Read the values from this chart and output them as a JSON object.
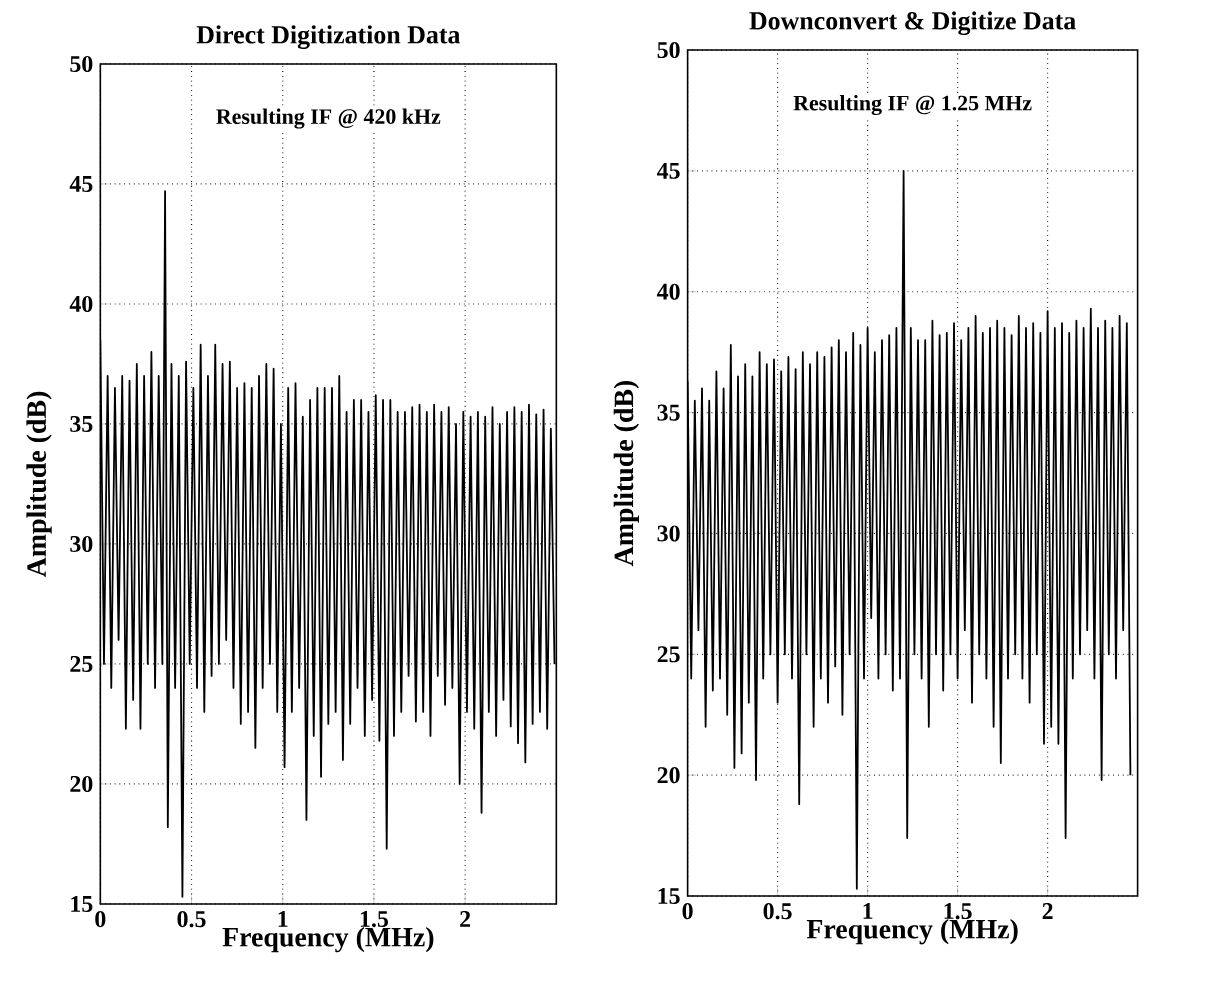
{
  "chart_data": [
    {
      "type": "line",
      "title": "Direct Digitization Data",
      "xlabel": "Frequency (MHz)",
      "ylabel": "Amplitude (dB)",
      "annotations": [
        "Resulting IF @ 420 kHz"
      ],
      "color": "#000000",
      "grid": true,
      "xlim": [
        0,
        2.5
      ],
      "ylim": [
        15,
        50
      ],
      "xticks": [
        0,
        0.5,
        1,
        1.5,
        2
      ],
      "yticks": [
        15,
        20,
        25,
        30,
        35,
        40,
        45,
        50
      ],
      "x": [
        0,
        0.02,
        0.04,
        0.06,
        0.08,
        0.1,
        0.12,
        0.14,
        0.16,
        0.18,
        0.2,
        0.22,
        0.24,
        0.26,
        0.28,
        0.3,
        0.32,
        0.34,
        0.355,
        0.37,
        0.39,
        0.41,
        0.43,
        0.45,
        0.47,
        0.49,
        0.51,
        0.53,
        0.55,
        0.57,
        0.59,
        0.61,
        0.63,
        0.65,
        0.67,
        0.69,
        0.71,
        0.73,
        0.75,
        0.77,
        0.79,
        0.81,
        0.83,
        0.85,
        0.87,
        0.89,
        0.91,
        0.93,
        0.95,
        0.97,
        0.99,
        1.01,
        1.03,
        1.05,
        1.07,
        1.09,
        1.11,
        1.13,
        1.15,
        1.17,
        1.19,
        1.21,
        1.23,
        1.25,
        1.27,
        1.29,
        1.31,
        1.33,
        1.35,
        1.37,
        1.39,
        1.41,
        1.43,
        1.45,
        1.47,
        1.49,
        1.51,
        1.53,
        1.55,
        1.57,
        1.59,
        1.61,
        1.63,
        1.65,
        1.67,
        1.69,
        1.71,
        1.73,
        1.75,
        1.77,
        1.79,
        1.81,
        1.83,
        1.85,
        1.87,
        1.89,
        1.91,
        1.93,
        1.95,
        1.97,
        1.99,
        2.01,
        2.03,
        2.05,
        2.07,
        2.09,
        2.11,
        2.13,
        2.15,
        2.17,
        2.19,
        2.21,
        2.23,
        2.25,
        2.27,
        2.29,
        2.31,
        2.33,
        2.35,
        2.37,
        2.39,
        2.41,
        2.43,
        2.45,
        2.47,
        2.49
      ],
      "values": [
        38.5,
        25,
        37,
        24,
        36.5,
        26,
        37,
        22.3,
        36.8,
        23.5,
        37.5,
        22.3,
        37,
        25,
        38,
        24,
        37,
        25,
        44.7,
        18.2,
        37.5,
        24,
        37,
        15.3,
        37.6,
        25,
        36.5,
        24,
        38.3,
        23,
        37,
        24.5,
        38.3,
        25,
        37.5,
        26,
        37.6,
        24,
        36.5,
        22.5,
        36.7,
        23,
        36.5,
        21.5,
        37,
        24,
        37.5,
        25,
        37.3,
        23,
        35,
        20.7,
        36.5,
        23,
        36.7,
        24,
        35.3,
        18.5,
        36,
        22,
        36.5,
        20.3,
        36.5,
        22.5,
        36.5,
        23,
        37,
        21,
        35.5,
        22.5,
        36,
        24,
        36,
        22,
        35.5,
        23.5,
        36.2,
        21.8,
        36,
        17.3,
        36,
        22,
        35.5,
        23,
        35.5,
        24.5,
        35.7,
        22.6,
        35.8,
        23,
        35.5,
        22,
        35.8,
        24.5,
        35.5,
        23.3,
        35.7,
        24,
        35,
        20,
        35.5,
        23,
        35.3,
        22.3,
        35.5,
        18.8,
        35.3,
        23,
        35.7,
        22,
        35,
        23.5,
        35.5,
        22.4,
        35.7,
        21.7,
        35.5,
        20.9,
        35.8,
        22.5,
        35.4,
        23,
        35.6,
        22.3,
        34.8,
        25
      ]
    },
    {
      "type": "line",
      "title": "Downconvert & Digitize Data",
      "xlabel": "Frequency (MHz)",
      "ylabel": "Amplitude (dB)",
      "annotations": [
        "Resulting IF @ 1.25 MHz"
      ],
      "color": "#000000",
      "grid": true,
      "xlim": [
        0,
        2.5
      ],
      "ylim": [
        15,
        50
      ],
      "xticks": [
        0,
        0.5,
        1,
        1.5,
        2
      ],
      "yticks": [
        15,
        20,
        25,
        30,
        35,
        40,
        45,
        50
      ],
      "x": [
        0,
        0.02,
        0.04,
        0.06,
        0.08,
        0.1,
        0.12,
        0.14,
        0.16,
        0.18,
        0.2,
        0.22,
        0.24,
        0.26,
        0.28,
        0.3,
        0.32,
        0.34,
        0.36,
        0.38,
        0.4,
        0.42,
        0.44,
        0.46,
        0.48,
        0.5,
        0.52,
        0.54,
        0.56,
        0.58,
        0.6,
        0.62,
        0.64,
        0.66,
        0.68,
        0.7,
        0.72,
        0.74,
        0.76,
        0.78,
        0.8,
        0.82,
        0.84,
        0.86,
        0.88,
        0.9,
        0.92,
        0.94,
        0.96,
        0.98,
        1,
        1.02,
        1.04,
        1.06,
        1.08,
        1.1,
        1.12,
        1.14,
        1.16,
        1.18,
        1.2,
        1.22,
        1.24,
        1.26,
        1.28,
        1.3,
        1.32,
        1.34,
        1.36,
        1.38,
        1.4,
        1.42,
        1.44,
        1.46,
        1.48,
        1.5,
        1.52,
        1.54,
        1.56,
        1.58,
        1.6,
        1.62,
        1.64,
        1.66,
        1.68,
        1.7,
        1.72,
        1.74,
        1.76,
        1.78,
        1.8,
        1.82,
        1.84,
        1.86,
        1.88,
        1.9,
        1.92,
        1.94,
        1.96,
        1.98,
        2,
        2.02,
        2.04,
        2.06,
        2.08,
        2.1,
        2.12,
        2.14,
        2.16,
        2.18,
        2.2,
        2.22,
        2.24,
        2.26,
        2.28,
        2.3,
        2.32,
        2.34,
        2.36,
        2.38,
        2.4,
        2.42,
        2.44,
        2.46
      ],
      "values": [
        36.3,
        24,
        35.5,
        26,
        36,
        22,
        35.5,
        23.5,
        36.7,
        24,
        36,
        22.5,
        37.8,
        20.3,
        36.5,
        20.9,
        37,
        23,
        36.5,
        19.8,
        37.5,
        24,
        37,
        25,
        37.2,
        23,
        36.7,
        25,
        37.3,
        24,
        36.8,
        18.8,
        37.5,
        25,
        37,
        22,
        37.5,
        24,
        37.3,
        23,
        37.7,
        24.5,
        38,
        22.5,
        37.5,
        25,
        38.3,
        15.3,
        37.8,
        24,
        38.5,
        26.5,
        37.5,
        24,
        38,
        25,
        38.2,
        23.5,
        38.5,
        24,
        45,
        17.4,
        38.5,
        25,
        38,
        24,
        38,
        22,
        38.8,
        25,
        38.2,
        23.5,
        38.3,
        25,
        38.7,
        24,
        38,
        26,
        38.5,
        23,
        39,
        25,
        38.3,
        24,
        38.5,
        22,
        38.8,
        20.5,
        38.5,
        24,
        38.2,
        25,
        39,
        24,
        38.5,
        23,
        38.7,
        25,
        38.3,
        21.3,
        39.2,
        22,
        38.5,
        21.3,
        38.7,
        17.4,
        38.3,
        24,
        38.8,
        25,
        38.5,
        26,
        39.3,
        24,
        38.5,
        19.8,
        38.8,
        25,
        38.5,
        24,
        39,
        26,
        38.7,
        20
      ]
    }
  ]
}
